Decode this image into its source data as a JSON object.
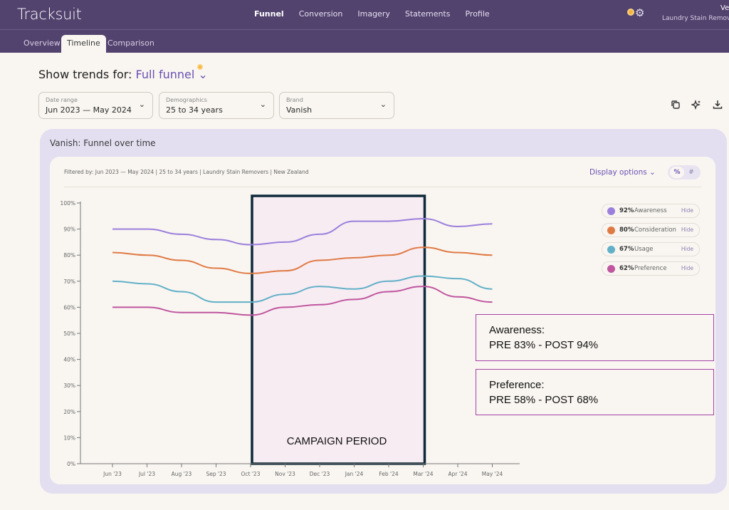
{
  "app": {
    "logo": "Tracksuit"
  },
  "nav": {
    "items": [
      {
        "label": "Funnel",
        "active": true
      },
      {
        "label": "Conversion",
        "active": false
      },
      {
        "label": "Imagery",
        "active": false
      },
      {
        "label": "Statements",
        "active": false
      },
      {
        "label": "Profile",
        "active": false
      }
    ],
    "settings_icon": "gear-icon",
    "notification_icon": "notification-dot-icon",
    "account_name": "Ve",
    "account_category": "Laundry Stain Remov..."
  },
  "subnav": {
    "tabs": [
      {
        "label": "Overview",
        "active": false
      },
      {
        "label": "Timeline",
        "active": true
      },
      {
        "label": "Comparison",
        "active": false
      }
    ]
  },
  "trends": {
    "prefix": "Show trends for: ",
    "selected": "Full funnel",
    "chevron": "⌄"
  },
  "filters": [
    {
      "label": "Date range",
      "value": "Jun 2023 — May 2024"
    },
    {
      "label": "Demographics",
      "value": "25 to 34 years"
    },
    {
      "label": "Brand",
      "value": "Vanish"
    }
  ],
  "toolbar": {
    "copy_icon": "copy-icon",
    "ai_icon": "sparkle-icon",
    "download_icon": "download-icon"
  },
  "card": {
    "title": "Vanish: Funnel over time",
    "filtered_by": "Filtered by: Jun 2023 — May 2024  |  25 to 34 years  |  Laundry Stain Removers  |  New Zealand",
    "display_options": "Display options ⌄",
    "toggle": {
      "percent": "%",
      "number": "#",
      "selected": "%"
    }
  },
  "legend": [
    {
      "pct": "92%",
      "name": "Awareness",
      "hide": "Hide",
      "color": "#9b7fdc"
    },
    {
      "pct": "80%",
      "name": "Consideration",
      "hide": "Hide",
      "color": "#e07a45"
    },
    {
      "pct": "67%",
      "name": "Usage",
      "hide": "Hide",
      "color": "#62b0c8"
    },
    {
      "pct": "62%",
      "name": "Preference",
      "hide": "Hide",
      "color": "#c0569f"
    }
  ],
  "annotations": [
    {
      "title": "Awareness:",
      "text": "PRE 83% - POST 94%"
    },
    {
      "title": "Preference:",
      "text": "PRE 58% - POST 68%"
    }
  ],
  "campaign": {
    "label": "CAMPAIGN PERIOD",
    "start": "Oct '23",
    "end": "Mar '24"
  },
  "chart_data": {
    "type": "line",
    "title": "Vanish: Funnel over time",
    "xlabel": "",
    "ylabel": "",
    "categories": [
      "Jun '23",
      "Jul '23",
      "Aug '23",
      "Sep '23",
      "Oct '23",
      "Nov '23",
      "Dec '23",
      "Jan '24",
      "Feb '24",
      "Mar '24",
      "Apr '24",
      "May '24"
    ],
    "yticks": [
      "0%",
      "10%",
      "20%",
      "30%",
      "40%",
      "50%",
      "60%",
      "70%",
      "80%",
      "90%",
      "100%"
    ],
    "ylim": [
      0,
      100
    ],
    "grid": false,
    "legend_position": "top-right",
    "series": [
      {
        "name": "Awareness",
        "color": "#9b7fdc",
        "values": [
          90,
          90,
          88,
          86,
          84,
          85,
          88,
          93,
          93,
          94,
          91,
          92
        ]
      },
      {
        "name": "Consideration",
        "color": "#e07a45",
        "values": [
          81,
          80,
          78,
          75,
          73,
          74,
          78,
          79,
          80,
          83,
          81,
          80
        ]
      },
      {
        "name": "Usage",
        "color": "#62b0c8",
        "values": [
          70,
          69,
          66,
          62,
          62,
          65,
          68,
          67,
          70,
          72,
          71,
          67
        ]
      },
      {
        "name": "Preference",
        "color": "#c0569f",
        "values": [
          60,
          60,
          58,
          58,
          57,
          60,
          61,
          63,
          66,
          68,
          64,
          62
        ]
      }
    ],
    "highlight_region": {
      "label": "CAMPAIGN PERIOD",
      "from": "Oct '23",
      "to": "Mar '24"
    }
  }
}
